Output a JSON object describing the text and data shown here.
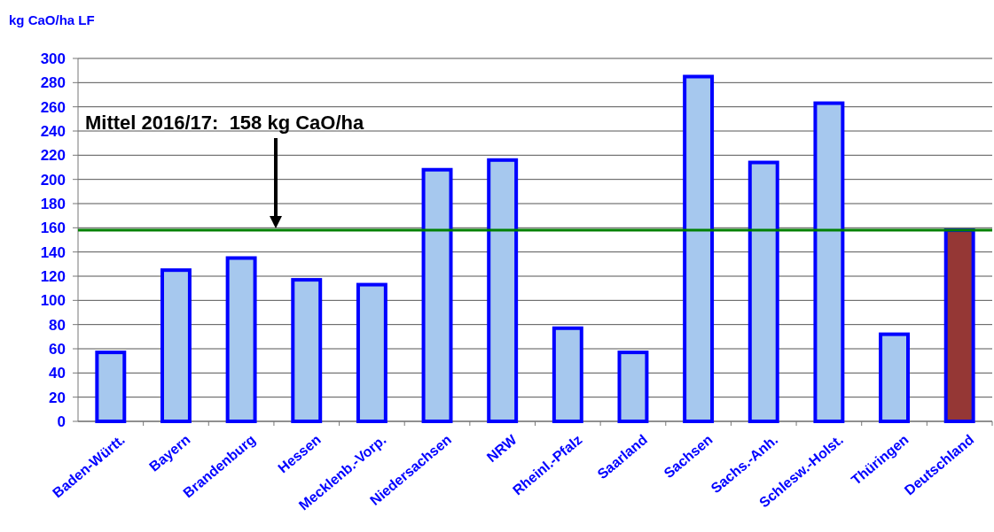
{
  "chart_data": {
    "type": "bar",
    "ylabel": "kg CaO/ha LF",
    "categories": [
      "Baden-Württ.",
      "Bayern",
      "Brandenburg",
      "Hessen",
      "Mecklenb.-Vorp.",
      "Niedersachsen",
      "NRW",
      "Rheinl.-Pfalz",
      "Saarland",
      "Sachsen",
      "Sachs.-Anh.",
      "Schlesw.-Holst.",
      "Thüringen",
      "Deutschland"
    ],
    "values": [
      57,
      125,
      135,
      117,
      113,
      208,
      216,
      77,
      57,
      285,
      214,
      263,
      72,
      158
    ],
    "colors": [
      "#a6c8ee",
      "#a6c8ee",
      "#a6c8ee",
      "#a6c8ee",
      "#a6c8ee",
      "#a6c8ee",
      "#a6c8ee",
      "#a6c8ee",
      "#a6c8ee",
      "#a6c8ee",
      "#a6c8ee",
      "#a6c8ee",
      "#a6c8ee",
      "#953735"
    ],
    "ylim": [
      0,
      300
    ],
    "yticks": [
      0,
      20,
      40,
      60,
      80,
      100,
      120,
      140,
      160,
      180,
      200,
      220,
      240,
      260,
      280,
      300
    ],
    "grid": "y",
    "ref_lines": [
      {
        "axis": "y",
        "value": 158,
        "color": "#008000"
      }
    ],
    "annotations": [
      "Mittel 2016/17:  158 kg CaO/ha"
    ]
  }
}
